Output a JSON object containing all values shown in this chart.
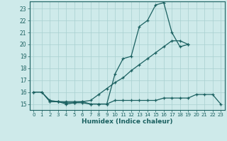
{
  "xlabel": "Humidex (Indice chaleur)",
  "bg_color": "#ceeaea",
  "grid_color": "#a8d0d0",
  "line_color": "#1a6060",
  "xlim": [
    -0.5,
    23.5
  ],
  "ylim": [
    14.5,
    23.6
  ],
  "xticks": [
    0,
    1,
    2,
    3,
    4,
    5,
    6,
    7,
    8,
    9,
    10,
    11,
    12,
    13,
    14,
    15,
    16,
    17,
    18,
    19,
    20,
    21,
    22,
    23
  ],
  "yticks": [
    15,
    16,
    17,
    18,
    19,
    20,
    21,
    22,
    23
  ],
  "line1_x": [
    0,
    1,
    2,
    3,
    4,
    5,
    6,
    7,
    8,
    9,
    10,
    11,
    12,
    13,
    14,
    15,
    16,
    17,
    18,
    19
  ],
  "line1_y": [
    16.0,
    16.0,
    15.2,
    15.2,
    15.0,
    15.1,
    15.1,
    15.0,
    15.0,
    15.0,
    17.5,
    18.8,
    19.0,
    21.5,
    22.0,
    23.3,
    23.5,
    21.0,
    19.8,
    20.0
  ],
  "line2_x": [
    0,
    1,
    2,
    3,
    4,
    5,
    6,
    7,
    8,
    9,
    10,
    11,
    12,
    13,
    14,
    15,
    16,
    17,
    18,
    19
  ],
  "line2_y": [
    16.0,
    16.0,
    15.3,
    15.2,
    15.1,
    15.1,
    15.2,
    15.3,
    15.8,
    16.3,
    16.8,
    17.2,
    17.8,
    18.3,
    18.8,
    19.3,
    19.8,
    20.3,
    20.3,
    20.0
  ],
  "line3_x": [
    2,
    3,
    4,
    5,
    6,
    7,
    8,
    9,
    10,
    11,
    12,
    13,
    14,
    15,
    16,
    17,
    18,
    19,
    20,
    21,
    22,
    23
  ],
  "line3_y": [
    15.2,
    15.2,
    15.2,
    15.2,
    15.2,
    15.0,
    15.0,
    15.0,
    15.3,
    15.3,
    15.3,
    15.3,
    15.3,
    15.3,
    15.5,
    15.5,
    15.5,
    15.5,
    15.8,
    15.8,
    15.8,
    15.0
  ]
}
